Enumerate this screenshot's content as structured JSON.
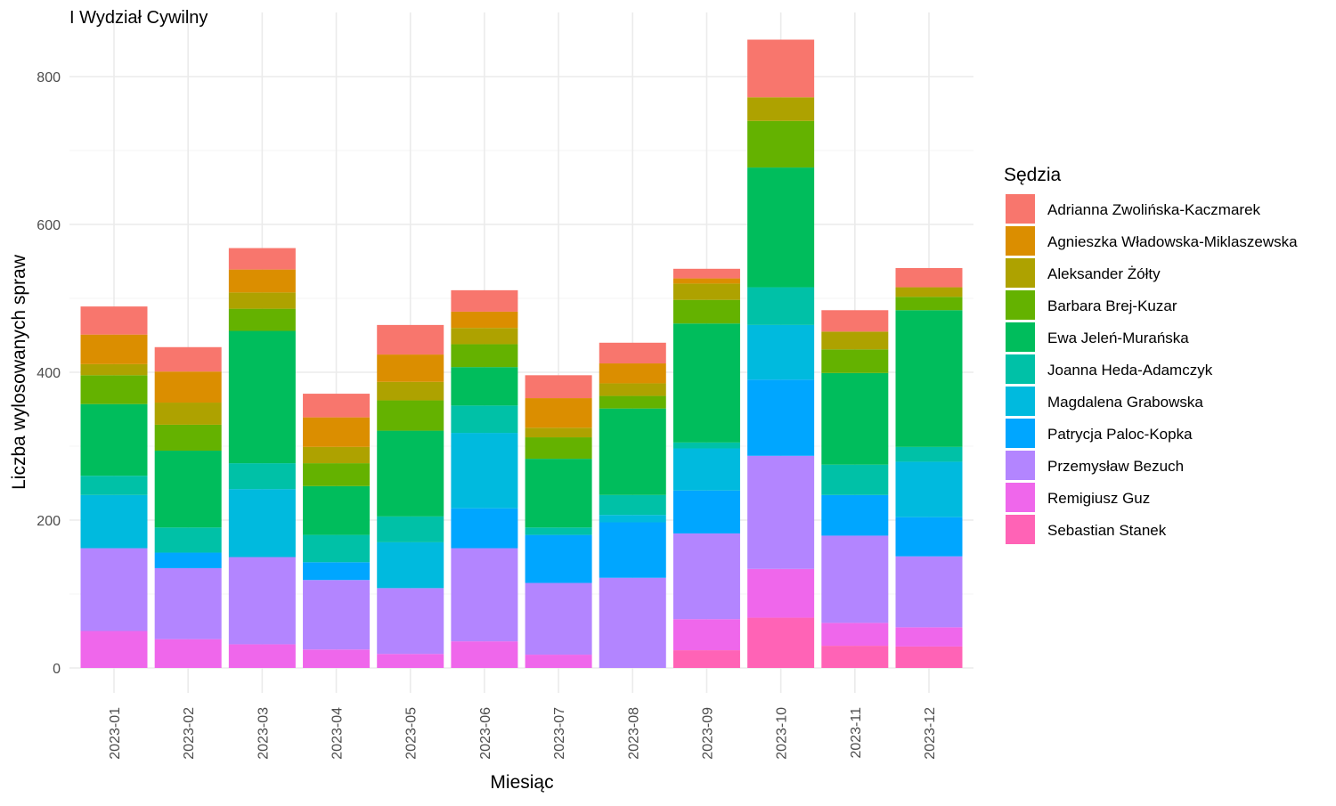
{
  "chart_data": {
    "type": "bar",
    "stacked": true,
    "title": "I Wydział Cywilny",
    "xlabel": "Miesiąc",
    "ylabel": "Liczba wylosowanych spraw",
    "ylim": [
      0,
      860
    ],
    "yticks": [
      0,
      200,
      400,
      600,
      800
    ],
    "grid": true,
    "legend_title": "Sędzia",
    "legend_position": "right",
    "categories": [
      "2023-01",
      "2023-02",
      "2023-03",
      "2023-04",
      "2023-05",
      "2023-06",
      "2023-07",
      "2023-08",
      "2023-09",
      "2023-10",
      "2023-11",
      "2023-12"
    ],
    "series": [
      {
        "name": "Adrianna Zwolińska-Kaczmarek",
        "color": "#F8766D",
        "values": [
          38,
          33,
          29,
          32,
          40,
          29,
          31,
          28,
          13,
          78,
          29,
          26
        ]
      },
      {
        "name": "Agnieszka Władowska-Miklaszewska",
        "color": "#DB8E00",
        "values": [
          40,
          42,
          31,
          40,
          37,
          22,
          40,
          27,
          7,
          0,
          0,
          0
        ]
      },
      {
        "name": "Aleksander Żółty",
        "color": "#AEA200",
        "values": [
          15,
          30,
          22,
          22,
          25,
          22,
          13,
          17,
          22,
          32,
          24,
          13
        ]
      },
      {
        "name": "Barbara Brej-Kuzar",
        "color": "#64B200",
        "values": [
          39,
          35,
          30,
          31,
          41,
          31,
          29,
          17,
          32,
          63,
          32,
          18
        ]
      },
      {
        "name": "Ewa Jeleń-Murańska",
        "color": "#00BD5C",
        "values": [
          97,
          104,
          179,
          66,
          116,
          52,
          93,
          117,
          161,
          162,
          124,
          185
        ]
      },
      {
        "name": "Joanna Heda-Adamczyk",
        "color": "#00C1A7",
        "values": [
          26,
          34,
          35,
          37,
          35,
          37,
          10,
          27,
          8,
          51,
          41,
          20
        ]
      },
      {
        "name": "Magdalena Grabowska",
        "color": "#00BADE",
        "values": [
          72,
          0,
          92,
          0,
          62,
          102,
          0,
          10,
          57,
          74,
          0,
          75
        ]
      },
      {
        "name": "Patrycja Paloc-Kopka",
        "color": "#00A6FF",
        "values": [
          0,
          21,
          0,
          24,
          0,
          54,
          65,
          75,
          58,
          103,
          55,
          53
        ]
      },
      {
        "name": "Przemysław Bezuch",
        "color": "#B385FF",
        "values": [
          112,
          96,
          118,
          94,
          89,
          126,
          97,
          122,
          116,
          153,
          118,
          96
        ]
      },
      {
        "name": "Remigiusz Guz",
        "color": "#EF67EB",
        "values": [
          50,
          39,
          32,
          25,
          19,
          36,
          18,
          0,
          42,
          66,
          31,
          26
        ]
      },
      {
        "name": "Sebastian Stanek",
        "color": "#FF63B6",
        "values": [
          0,
          0,
          0,
          0,
          0,
          0,
          0,
          0,
          24,
          68,
          30,
          29
        ]
      }
    ]
  }
}
